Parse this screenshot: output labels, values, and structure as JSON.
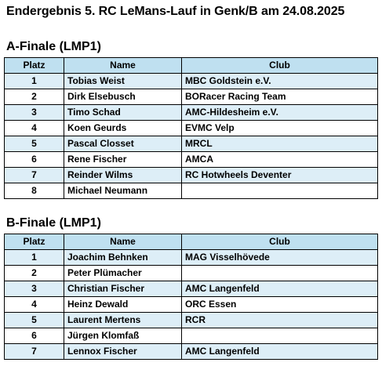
{
  "page_title": "Endergebnis 5. RC LeMans-Lauf in Genk/B am 24.08.2025",
  "columns": {
    "platz": "Platz",
    "name": "Name",
    "club": "Club"
  },
  "finals": [
    {
      "title": "A-Finale (LMP1)",
      "rows": [
        {
          "platz": "1",
          "name": "Tobias Weist",
          "club": "MBC Goldstein e.V."
        },
        {
          "platz": "2",
          "name": "Dirk Elsebusch",
          "club": "BORacer Racing Team"
        },
        {
          "platz": "3",
          "name": "Timo Schad",
          "club": "AMC-Hildesheim e.V."
        },
        {
          "platz": "4",
          "name": "Koen Geurds",
          "club": "EVMC Velp"
        },
        {
          "platz": "5",
          "name": "Pascal Closset",
          "club": "MRCL"
        },
        {
          "platz": "6",
          "name": "Rene Fischer",
          "club": "AMCA"
        },
        {
          "platz": "7",
          "name": "Reinder Wilms",
          "club": "RC Hotwheels Deventer"
        },
        {
          "platz": "8",
          "name": "Michael Neumann",
          "club": ""
        }
      ]
    },
    {
      "title": "B-Finale (LMP1)",
      "rows": [
        {
          "platz": "1",
          "name": "Joachim Behnken",
          "club": "MAG Visselhövede"
        },
        {
          "platz": "2",
          "name": "Peter Plümacher",
          "club": ""
        },
        {
          "platz": "3",
          "name": "Christian Fischer",
          "club": "AMC Langenfeld"
        },
        {
          "platz": "4",
          "name": "Heinz Dewald",
          "club": "ORC Essen"
        },
        {
          "platz": "5",
          "name": "Laurent Mertens",
          "club": "RCR"
        },
        {
          "platz": "6",
          "name": "Jürgen Klomfaß",
          "club": ""
        },
        {
          "platz": "7",
          "name": "Lennox Fischer",
          "club": "AMC Langenfeld"
        }
      ]
    }
  ],
  "colors": {
    "header_fill": "#bfe0f0",
    "row_fill": "#ddeef7",
    "border": "#000000"
  }
}
